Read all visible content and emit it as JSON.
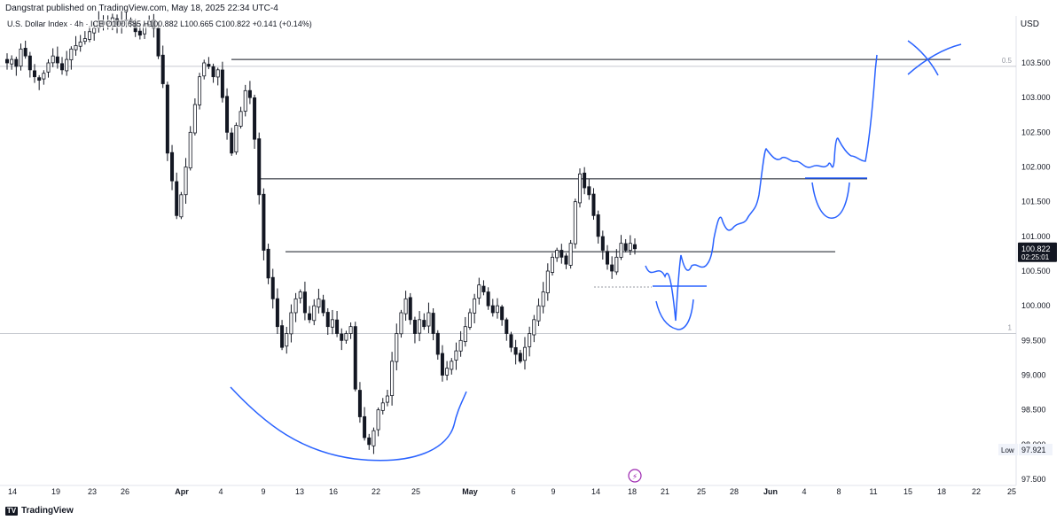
{
  "header": {
    "published": "Dangstrat published on TradingView.com, May 18, 2025 22:34 UTC-4",
    "legend": "U.S. Dollar Index · 4h · ICE  O100.685  H100.882  L100.665  C100.822  +0.141 (+0.14%)",
    "currency": "USD"
  },
  "footer": {
    "brand": "TradingView"
  },
  "chart_data": {
    "type": "candlestick",
    "title": "U.S. Dollar Index",
    "timeframe": "4h",
    "ohlc_last": {
      "open": 100.685,
      "high": 100.882,
      "low": 100.665,
      "close": 100.822,
      "change": 0.141,
      "change_pct": 0.14
    },
    "y_ticks": [
      "103.500",
      "103.000",
      "102.500",
      "102.000",
      "101.500",
      "101.000",
      "100.500",
      "100.000",
      "99.500",
      "99.000",
      "98.500",
      "98.000",
      "97.500"
    ],
    "x_ticks": [
      "14",
      "19",
      "23",
      "26",
      "Apr",
      "4",
      "9",
      "13",
      "16",
      "22",
      "25",
      "May",
      "6",
      "9",
      "14",
      "18",
      "21",
      "25",
      "28",
      "Jun",
      "4",
      "8",
      "11",
      "15",
      "18",
      "22",
      "25"
    ],
    "ylim": [
      97.5,
      104.2
    ],
    "last_price": {
      "value": "100.822",
      "countdown": "02:25:01"
    },
    "low_marker": {
      "label": "Low",
      "value": "97.921"
    },
    "fib_labels": {
      "top": "0.5",
      "bottom": "1"
    },
    "path": [
      103.5,
      103.55,
      103.45,
      103.7,
      103.6,
      103.4,
      103.3,
      103.25,
      103.35,
      103.5,
      103.6,
      103.5,
      103.4,
      103.55,
      103.7,
      103.75,
      103.8,
      103.85,
      103.95,
      104.0,
      104.1,
      104.05,
      104.1,
      104.15,
      104.05,
      104.1,
      104.12,
      104.08,
      103.95,
      103.9,
      104.05,
      104.1,
      104.0,
      103.6,
      103.2,
      102.2,
      101.8,
      101.3,
      101.6,
      102.0,
      102.5,
      102.9,
      103.3,
      103.5,
      103.45,
      103.3,
      103.4,
      103.0,
      102.5,
      102.2,
      102.6,
      102.8,
      103.1,
      103.0,
      102.4,
      101.6,
      100.8,
      100.4,
      100.1,
      99.7,
      99.4,
      99.6,
      99.9,
      100.1,
      100.2,
      99.9,
      99.8,
      100.0,
      100.1,
      99.9,
      99.7,
      99.8,
      99.6,
      99.5,
      99.6,
      99.7,
      98.8,
      98.4,
      98.1,
      98.0,
      98.2,
      98.5,
      98.6,
      98.7,
      99.2,
      99.6,
      99.9,
      100.1,
      99.8,
      99.6,
      99.8,
      99.7,
      99.9,
      99.6,
      99.3,
      99.0,
      99.1,
      99.2,
      99.35,
      99.5,
      99.7,
      99.9,
      100.1,
      100.3,
      100.2,
      100.0,
      99.9,
      100.0,
      99.8,
      99.6,
      99.4,
      99.3,
      99.2,
      99.4,
      99.6,
      99.8,
      100.0,
      100.2,
      100.5,
      100.7,
      100.8,
      100.7,
      100.6,
      100.9,
      101.5,
      101.9,
      101.7,
      101.6,
      101.3,
      101.0,
      100.8,
      100.6,
      100.5,
      100.7,
      100.9,
      100.8,
      100.9,
      100.822
    ],
    "levels": [
      103.55,
      101.83,
      100.78,
      100.27
    ],
    "fib_lines": {
      "top": 103.45,
      "bottom": 99.6
    },
    "colors": {
      "up": "#131722",
      "down": "#131722",
      "level": "#131722",
      "fib": "#c7cad1",
      "drawing": "#2962ff",
      "accent": "#131722"
    }
  }
}
